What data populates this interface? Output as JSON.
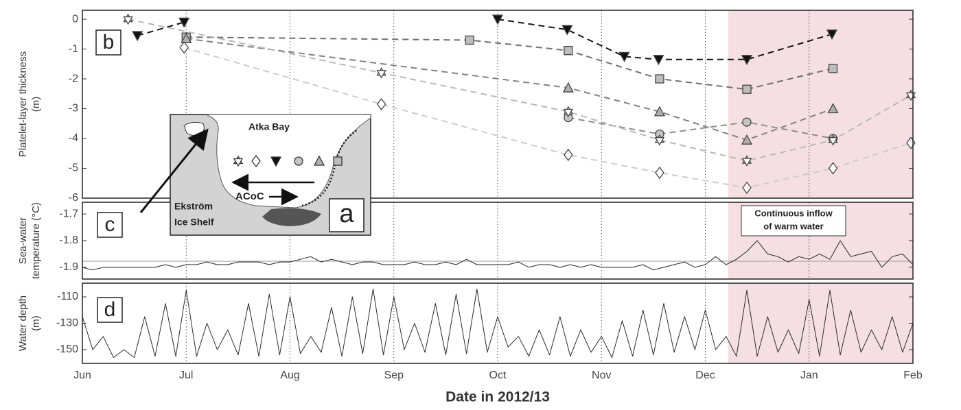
{
  "chart_data": [
    {
      "type": "line",
      "panel_label": "b",
      "y_label": [
        "Platelet-layer thickness",
        "(m)"
      ],
      "xlim": [
        0,
        8
      ],
      "ylim": [
        -6,
        0.3
      ],
      "yticks": [
        0,
        -1,
        -2,
        -3,
        -4,
        -5,
        -6
      ],
      "shade": [
        6.22,
        8
      ],
      "shade_color": "#f5dfe5",
      "series": [
        {
          "marker": "triangle-down",
          "color": "#111111",
          "fill": "#111111",
          "x": [
            0.53,
            0.98,
            null,
            4.0,
            4.67,
            5.22,
            5.55,
            6.4,
            7.22
          ],
          "values": [
            -0.55,
            -0.1,
            null,
            0.0,
            -0.35,
            -1.25,
            -1.35,
            -1.35,
            -0.5
          ]
        },
        {
          "marker": "square",
          "color": "#6e6e6e",
          "fill": "#bdbdbd",
          "x": [
            1.0,
            3.73,
            4.68,
            5.56,
            6.4,
            7.23
          ],
          "values": [
            -0.6,
            -0.7,
            -1.05,
            -2.0,
            -2.35,
            -1.65
          ]
        },
        {
          "marker": "triangle-up",
          "color": "#808080",
          "fill": "#b0b0b0",
          "x": [
            1.0,
            4.68,
            5.56,
            6.4,
            7.23
          ],
          "values": [
            -0.65,
            -2.3,
            -3.1,
            -4.05,
            -3.0
          ]
        },
        {
          "marker": "circle",
          "color": "#8c8c8c",
          "fill": "#c4c4c4",
          "x": [
            4.68,
            5.56,
            6.4,
            7.23
          ],
          "values": [
            -3.3,
            -3.85,
            -3.45,
            -4.0
          ]
        },
        {
          "marker": "star",
          "color": "#b8b8b8",
          "fill": "#ffffff",
          "x": [
            0.44,
            2.88,
            4.68,
            5.56,
            6.4,
            7.23,
            7.98
          ],
          "values": [
            0.0,
            -1.8,
            -3.1,
            -4.05,
            -4.75,
            -4.05,
            -2.55
          ]
        },
        {
          "marker": "diamond",
          "color": "#cccccc",
          "fill": "#ffffff",
          "x": [
            0.98,
            2.88,
            4.68,
            5.56,
            6.4,
            7.23,
            7.98
          ],
          "values": [
            -0.95,
            -2.85,
            -4.55,
            -5.15,
            -5.65,
            -5.0,
            -4.15
          ]
        }
      ]
    },
    {
      "type": "line",
      "panel_label": "c",
      "y_label": [
        "Sea-water",
        "temperature (°C)"
      ],
      "annotation": [
        "Continuous inflow",
        "of warm water"
      ],
      "xlim": [
        0,
        8
      ],
      "ylim": [
        -1.944,
        -1.656
      ],
      "yticks": [
        -1.7,
        -1.8,
        -1.9
      ],
      "reference_line": -1.877,
      "series": [
        {
          "color": "#222222",
          "x": [
            0,
            0.1,
            0.2,
            0.3,
            0.4,
            0.5,
            0.6,
            0.7,
            0.8,
            0.9,
            1,
            1.1,
            1.2,
            1.3,
            1.4,
            1.5,
            1.6,
            1.7,
            1.8,
            1.9,
            2,
            2.1,
            2.2,
            2.3,
            2.4,
            2.5,
            2.6,
            2.7,
            2.8,
            2.9,
            3,
            3.1,
            3.2,
            3.3,
            3.4,
            3.5,
            3.6,
            3.7,
            3.8,
            3.9,
            4,
            4.1,
            4.2,
            4.3,
            4.4,
            4.5,
            4.6,
            4.7,
            4.8,
            4.9,
            5,
            5.1,
            5.2,
            5.3,
            5.4,
            5.5,
            5.6,
            5.7,
            5.8,
            5.9,
            6,
            6.1,
            6.2,
            6.3,
            6.4,
            6.5,
            6.6,
            6.7,
            6.8,
            6.9,
            7,
            7.1,
            7.2,
            7.3,
            7.4,
            7.5,
            7.6,
            7.7,
            7.8,
            7.9,
            8
          ],
          "values": [
            -1.9,
            -1.91,
            -1.9,
            -1.9,
            -1.9,
            -1.9,
            -1.9,
            -1.9,
            -1.89,
            -1.9,
            -1.89,
            -1.89,
            -1.88,
            -1.89,
            -1.89,
            -1.88,
            -1.88,
            -1.88,
            -1.89,
            -1.88,
            -1.88,
            -1.87,
            -1.86,
            -1.88,
            -1.87,
            -1.88,
            -1.89,
            -1.88,
            -1.88,
            -1.89,
            -1.89,
            -1.89,
            -1.88,
            -1.89,
            -1.89,
            -1.88,
            -1.89,
            -1.87,
            -1.89,
            -1.89,
            -1.89,
            -1.89,
            -1.88,
            -1.9,
            -1.89,
            -1.89,
            -1.9,
            -1.89,
            -1.9,
            -1.89,
            -1.9,
            -1.9,
            -1.9,
            -1.9,
            -1.89,
            -1.91,
            -1.9,
            -1.89,
            -1.88,
            -1.9,
            -1.89,
            -1.86,
            -1.89,
            -1.87,
            -1.84,
            -1.8,
            -1.85,
            -1.86,
            -1.88,
            -1.86,
            -1.87,
            -1.85,
            -1.87,
            -1.8,
            -1.86,
            -1.85,
            -1.84,
            -1.9,
            -1.86,
            -1.85,
            -1.89
          ]
        }
      ]
    },
    {
      "type": "line",
      "panel_label": "d",
      "y_label": [
        "Water depth",
        "(m)"
      ],
      "x_label": "Date in 2012/13",
      "xlim": [
        0,
        8
      ],
      "ylim": [
        -160.4,
        -99.6
      ],
      "yticks": [
        -110,
        -130,
        -150
      ],
      "xticks": [
        {
          "value": 0,
          "label": "Jun"
        },
        {
          "value": 1,
          "label": "Jul"
        },
        {
          "value": 2,
          "label": "Aug"
        },
        {
          "value": 3,
          "label": "Sep"
        },
        {
          "value": 4,
          "label": "Oct"
        },
        {
          "value": 5,
          "label": "Nov"
        },
        {
          "value": 6,
          "label": "Dec"
        },
        {
          "value": 7,
          "label": "Jan"
        },
        {
          "value": 8,
          "label": "Feb"
        }
      ],
      "series": [
        {
          "color": "#2a2a2a",
          "x": [
            0,
            0.1,
            0.2,
            0.3,
            0.4,
            0.5,
            0.6,
            0.7,
            0.8,
            0.9,
            1,
            1.1,
            1.2,
            1.3,
            1.4,
            1.5,
            1.6,
            1.7,
            1.8,
            1.9,
            2,
            2.1,
            2.2,
            2.3,
            2.4,
            2.5,
            2.6,
            2.7,
            2.8,
            2.9,
            3,
            3.1,
            3.2,
            3.3,
            3.4,
            3.5,
            3.6,
            3.7,
            3.8,
            3.9,
            4,
            4.1,
            4.2,
            4.3,
            4.4,
            4.5,
            4.6,
            4.7,
            4.8,
            4.9,
            5,
            5.1,
            5.2,
            5.3,
            5.4,
            5.5,
            5.6,
            5.7,
            5.8,
            5.9,
            6,
            6.1,
            6.2,
            6.3,
            6.4,
            6.5,
            6.6,
            6.7,
            6.8,
            6.9,
            7,
            7.1,
            7.2,
            7.3,
            7.4,
            7.5,
            7.6,
            7.7,
            7.8,
            7.9,
            8
          ],
          "values": [
            -125,
            -150,
            -140,
            -156,
            -150,
            -156,
            -125,
            -155,
            -115,
            -155,
            -105,
            -155,
            -130,
            -150,
            -135,
            -154,
            -115,
            -155,
            -108,
            -154,
            -110,
            -153,
            -140,
            -152,
            -118,
            -155,
            -110,
            -153,
            -104,
            -154,
            -110,
            -150,
            -130,
            -152,
            -115,
            -154,
            -108,
            -153,
            -104,
            -152,
            -125,
            -148,
            -140,
            -155,
            -135,
            -154,
            -125,
            -155,
            -135,
            -152,
            -140,
            -156,
            -128,
            -155,
            -120,
            -154,
            -115,
            -152,
            -125,
            -150,
            -120,
            -150,
            -140,
            -155,
            -105,
            -155,
            -125,
            -152,
            -135,
            -153,
            -112,
            -155,
            -105,
            -154,
            -120,
            -152,
            -135,
            -150,
            -125,
            -152,
            -130
          ]
        }
      ]
    }
  ],
  "inset": {
    "panel_label": "a",
    "bay": "Atka Bay",
    "current": "ACoC",
    "shelf": [
      "Ekström",
      "Ice Shelf"
    ]
  }
}
